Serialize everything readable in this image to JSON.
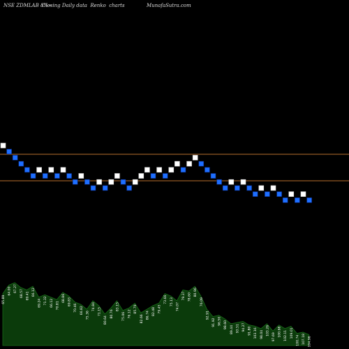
{
  "header": {
    "symbol": "NSE ZDMLAB 8%",
    "arrow": "~",
    "description": "Closing Daily data  Renko  charts",
    "site": "MunafaSutra.com"
  },
  "colors": {
    "background": "#000000",
    "brick_up": "#ffffff",
    "brick_down": "#1e6fff",
    "brick_outline": "#0c2a80",
    "reference_line": "#b8702e",
    "volume_fill": "#0b3b0b",
    "volume_line": "#1a6e1a",
    "label": "#ffffff"
  },
  "chart_data": {
    "type": "renko",
    "reference_levels": [
      "upper",
      "lower"
    ],
    "bricks": [
      {
        "dir": "up",
        "level": 0
      },
      {
        "dir": "down",
        "level": 1
      },
      {
        "dir": "down",
        "level": 2
      },
      {
        "dir": "down",
        "level": 3
      },
      {
        "dir": "down",
        "level": 4
      },
      {
        "dir": "down",
        "level": 5
      },
      {
        "dir": "up",
        "level": 4
      },
      {
        "dir": "down",
        "level": 5
      },
      {
        "dir": "up",
        "level": 4
      },
      {
        "dir": "down",
        "level": 5
      },
      {
        "dir": "up",
        "level": 4
      },
      {
        "dir": "down",
        "level": 5
      },
      {
        "dir": "down",
        "level": 6
      },
      {
        "dir": "up",
        "level": 5
      },
      {
        "dir": "down",
        "level": 6
      },
      {
        "dir": "down",
        "level": 7
      },
      {
        "dir": "up",
        "level": 6
      },
      {
        "dir": "down",
        "level": 7
      },
      {
        "dir": "up",
        "level": 6
      },
      {
        "dir": "up",
        "level": 5
      },
      {
        "dir": "down",
        "level": 6
      },
      {
        "dir": "down",
        "level": 7
      },
      {
        "dir": "up",
        "level": 6
      },
      {
        "dir": "up",
        "level": 5
      },
      {
        "dir": "up",
        "level": 4
      },
      {
        "dir": "down",
        "level": 5
      },
      {
        "dir": "up",
        "level": 4
      },
      {
        "dir": "down",
        "level": 5
      },
      {
        "dir": "up",
        "level": 4
      },
      {
        "dir": "up",
        "level": 3
      },
      {
        "dir": "down",
        "level": 4
      },
      {
        "dir": "up",
        "level": 3
      },
      {
        "dir": "up",
        "level": 2
      },
      {
        "dir": "down",
        "level": 3
      },
      {
        "dir": "down",
        "level": 4
      },
      {
        "dir": "down",
        "level": 5
      },
      {
        "dir": "down",
        "level": 6
      },
      {
        "dir": "down",
        "level": 7
      },
      {
        "dir": "up",
        "level": 6
      },
      {
        "dir": "down",
        "level": 7
      },
      {
        "dir": "up",
        "level": 6
      },
      {
        "dir": "down",
        "level": 7
      },
      {
        "dir": "down",
        "level": 8
      },
      {
        "dir": "up",
        "level": 7
      },
      {
        "dir": "down",
        "level": 8
      },
      {
        "dir": "up",
        "level": 7
      },
      {
        "dir": "down",
        "level": 8
      },
      {
        "dir": "down",
        "level": 9
      },
      {
        "dir": "up",
        "level": 8
      },
      {
        "dir": "down",
        "level": 9
      },
      {
        "dir": "up",
        "level": 8
      },
      {
        "dir": "down",
        "level": 9
      }
    ],
    "volume": {
      "values": [
        43,
        50,
        52,
        48,
        46,
        49,
        40,
        42,
        40,
        38,
        44,
        41,
        36,
        34,
        30,
        37,
        33,
        26,
        31,
        37,
        29,
        31,
        35,
        27,
        30,
        33,
        35,
        43,
        41,
        37,
        46,
        45,
        49,
        41,
        30,
        24,
        25,
        22,
        18,
        19,
        20,
        17,
        16,
        14,
        18,
        12,
        17,
        14,
        16,
        10,
        11,
        9
      ],
      "labels": [
        "65.89",
        "64.00",
        "67.27",
        "68.57",
        "69.41",
        "66.12",
        "69.24",
        "71.32",
        "66.12",
        "70.81",
        "68.86",
        "69.83",
        "70.46",
        "66.82",
        "75.36",
        "74.84",
        "71.15",
        "80.64",
        "80.76",
        "83.15",
        "75.06",
        "76.12",
        "85.79",
        "82.66",
        "86.74",
        "82.48",
        "79.45",
        "73.66",
        "75.13",
        "74.07",
        "79.37",
        "78.60",
        "80.96",
        "76.09",
        "92.91",
        "91.92",
        "96.50",
        "98.60",
        "89.44",
        "93.51",
        "94.27",
        "91.80",
        "103.16",
        "98.04",
        "103.26",
        "97.69",
        "100.68",
        "102.11",
        "109.01",
        "100.74",
        "107.18",
        "104.96"
      ]
    }
  }
}
